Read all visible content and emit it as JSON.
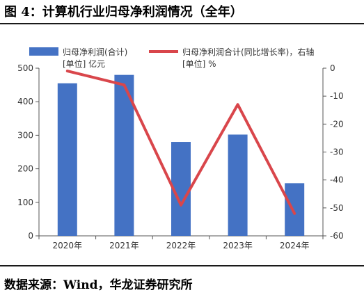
{
  "figure": {
    "title": "图 4：计算机行业归母净利润情况（全年）",
    "source": "数据来源：Wind，华龙证券研究所"
  },
  "chart_data": {
    "type": "bar",
    "categories": [
      "2020年",
      "2021年",
      "2022年",
      "2023年",
      "2024年"
    ],
    "series": [
      {
        "name": "归母净利润(合计)",
        "type": "bar",
        "axis": "left",
        "unit_label": "[单位] 亿元",
        "color": "#4472c4",
        "values": [
          455,
          480,
          280,
          302,
          157
        ]
      },
      {
        "name": "归母净利润合计(同比增长率)，右轴",
        "type": "line",
        "axis": "right",
        "unit_label": "[单位] %",
        "color": "#d9464b",
        "values": [
          -1,
          -6,
          -49,
          -13,
          -52
        ]
      }
    ],
    "y_left": {
      "min": 0,
      "max": 500,
      "ticks": [
        "0",
        "100",
        "200",
        "300",
        "400",
        "500"
      ]
    },
    "y_right": {
      "min": -60,
      "max": 0,
      "ticks": [
        "0",
        "-10",
        "-20",
        "-30",
        "-40",
        "-50",
        "-60"
      ]
    },
    "grid": false,
    "legend_position": "top"
  }
}
